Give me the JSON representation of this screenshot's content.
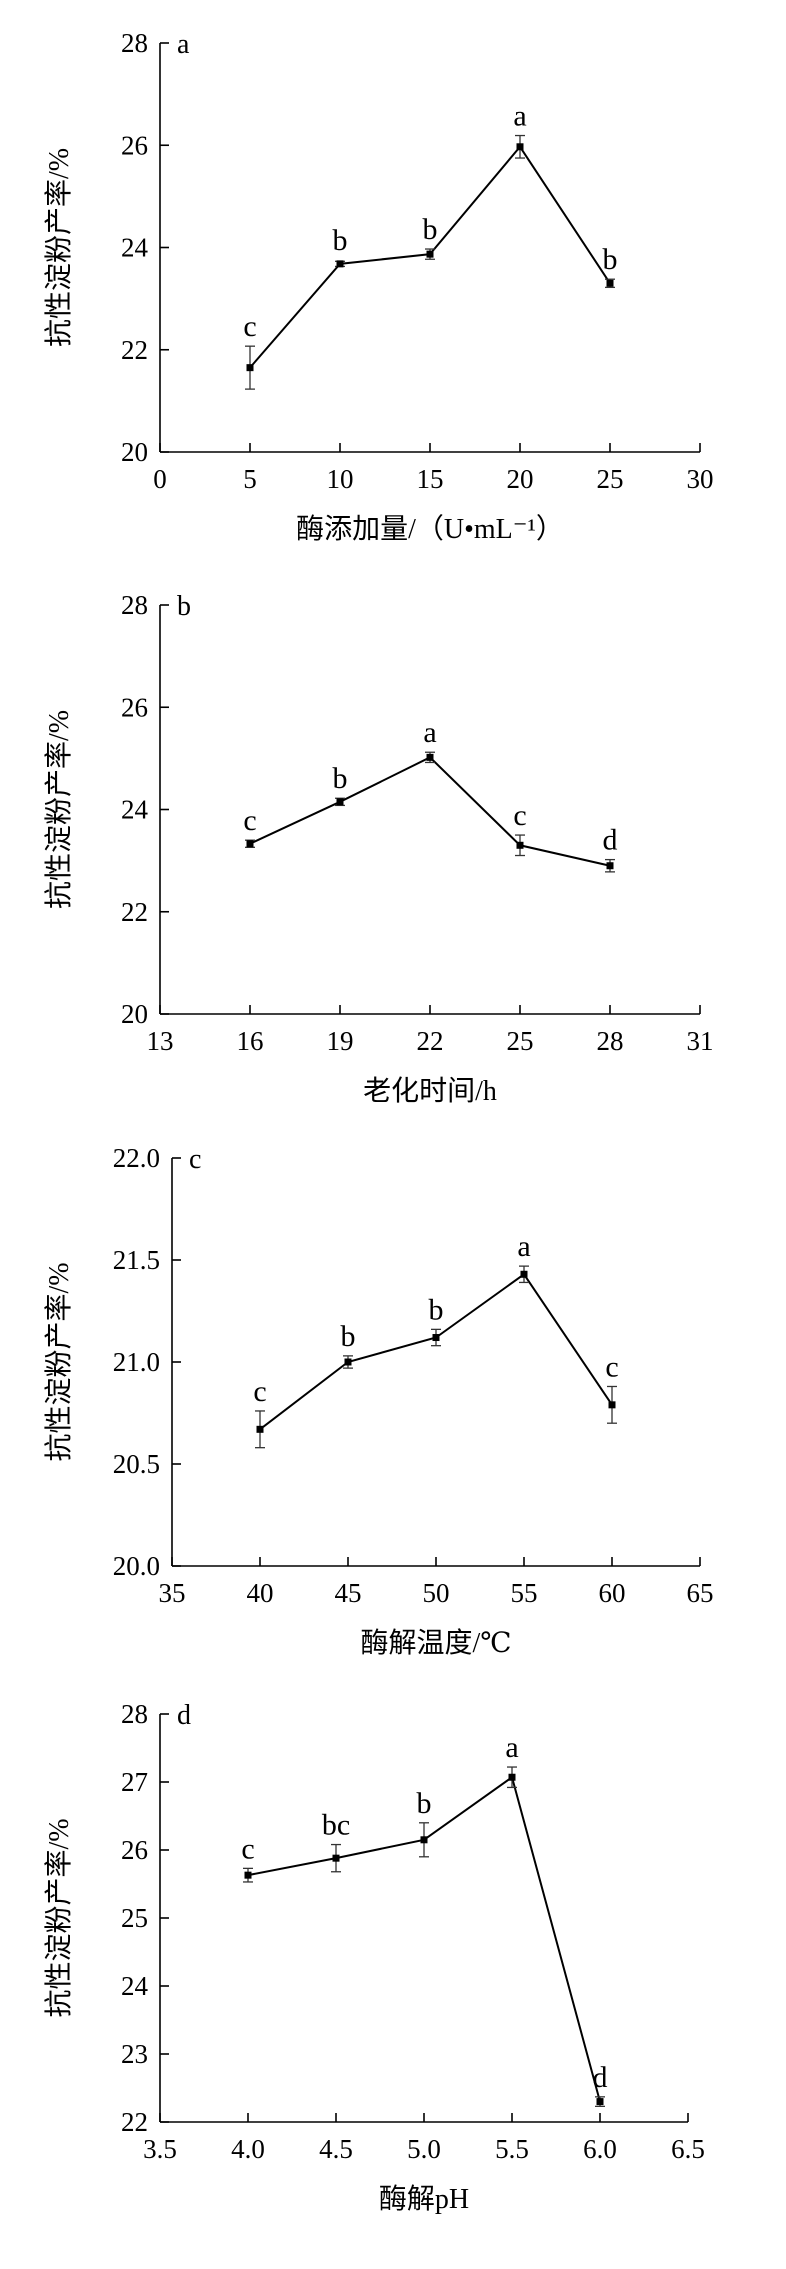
{
  "chart_data": [
    {
      "type": "line",
      "panel_label": "a",
      "xlabel": "酶添加量/（U•mL⁻¹）",
      "ylabel": "抗性淀粉产率/%",
      "xlim": [
        0,
        30
      ],
      "ylim": [
        20,
        28
      ],
      "xticks": [
        "0",
        "5",
        "10",
        "15",
        "20",
        "25",
        "30"
      ],
      "yticks": [
        "20",
        "22",
        "24",
        "26",
        "28"
      ],
      "x": [
        5,
        10,
        15,
        20,
        25
      ],
      "series": [
        {
          "values": [
            21.65,
            23.68,
            23.87,
            25.97,
            23.3
          ],
          "errors": [
            0.42,
            0.05,
            0.1,
            0.22,
            0.08
          ],
          "labels": [
            "c",
            "b",
            "b",
            "a",
            "b"
          ]
        }
      ]
    },
    {
      "type": "line",
      "panel_label": "b",
      "xlabel": "老化时间/h",
      "ylabel": "抗性淀粉产率/%",
      "xlim": [
        13,
        31
      ],
      "ylim": [
        20,
        28
      ],
      "xticks": [
        "13",
        "16",
        "19",
        "22",
        "25",
        "28",
        "31"
      ],
      "yticks": [
        "20",
        "22",
        "24",
        "26",
        "28"
      ],
      "x": [
        16,
        19,
        22,
        25,
        28
      ],
      "series": [
        {
          "values": [
            23.33,
            24.15,
            25.02,
            23.3,
            22.9
          ],
          "errors": [
            0.07,
            0.07,
            0.1,
            0.2,
            0.12
          ],
          "labels": [
            "c",
            "b",
            "a",
            "c",
            "d"
          ]
        }
      ]
    },
    {
      "type": "line",
      "panel_label": "c",
      "xlabel": "酶解温度/℃",
      "ylabel": "抗性淀粉产率/%",
      "xlim": [
        35,
        65
      ],
      "ylim": [
        20.0,
        22.0
      ],
      "xticks": [
        "35",
        "40",
        "45",
        "50",
        "55",
        "60",
        "65"
      ],
      "yticks": [
        "20.0",
        "20.5",
        "21.0",
        "21.5",
        "22.0"
      ],
      "x": [
        40,
        45,
        50,
        55,
        60
      ],
      "series": [
        {
          "values": [
            20.67,
            21.0,
            21.12,
            21.43,
            20.79
          ],
          "errors": [
            0.09,
            0.03,
            0.04,
            0.04,
            0.09
          ],
          "labels": [
            "c",
            "b",
            "b",
            "a",
            "c"
          ]
        }
      ]
    },
    {
      "type": "line",
      "panel_label": "d",
      "xlabel": "酶解pH",
      "ylabel": "抗性淀粉产率/%",
      "xlim": [
        3.5,
        6.5
      ],
      "ylim": [
        22,
        28
      ],
      "xticks": [
        "3.5",
        "4.0",
        "4.5",
        "5.0",
        "5.5",
        "6.0",
        "6.5"
      ],
      "yticks": [
        "22",
        "23",
        "24",
        "25",
        "26",
        "27",
        "28"
      ],
      "x": [
        4.0,
        4.5,
        5.0,
        5.5,
        6.0
      ],
      "series": [
        {
          "values": [
            25.63,
            25.88,
            26.15,
            27.07,
            22.3
          ],
          "errors": [
            0.1,
            0.2,
            0.25,
            0.15,
            0.07
          ],
          "labels": [
            "c",
            "bc",
            "b",
            "a",
            "d"
          ]
        }
      ]
    }
  ]
}
